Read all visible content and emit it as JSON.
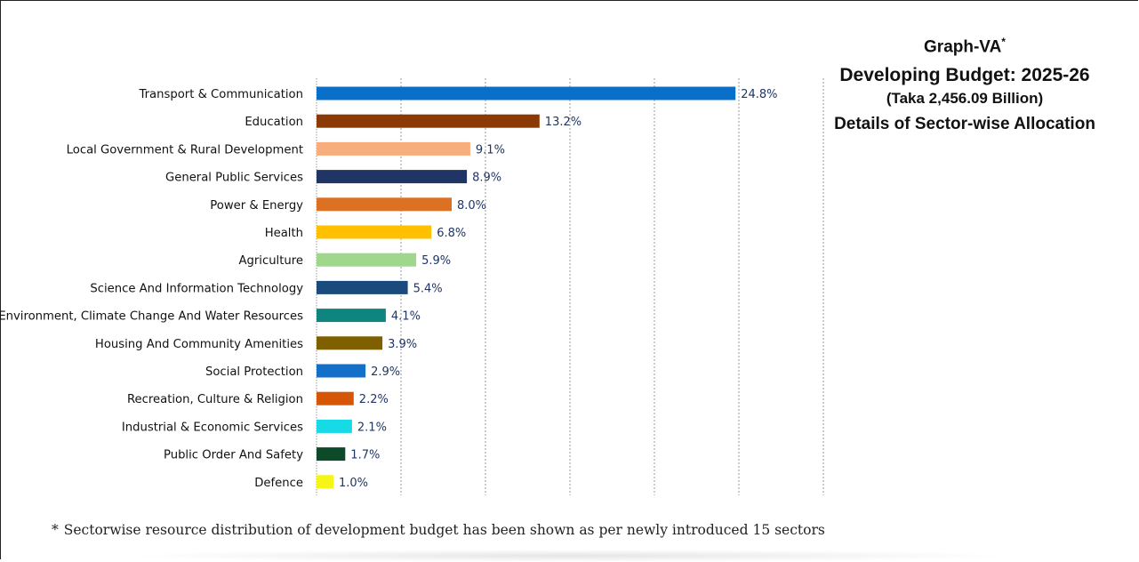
{
  "header": {
    "graph_label": "Graph-VA",
    "graph_mark": "*",
    "title": "Developing Budget: 2025-26",
    "subtitle": "(Taka 2,456.09 Billion)",
    "description": "Details of Sector-wise Allocation"
  },
  "footnote": {
    "mark": "*",
    "text": "Sectorwise resource distribution of development budget has been shown as per newly introduced 15 sectors"
  },
  "chart_data": {
    "type": "bar",
    "orientation": "horizontal",
    "grid": true,
    "value_suffix": "%",
    "xlim": [
      0,
      30
    ],
    "categories": [
      "Transport & Communication",
      "Education",
      "Local Government & Rural Development",
      "General Public Services",
      "Power & Energy",
      "Health",
      "Agriculture",
      "Science And Information Technology",
      "Environment, Climate Change And Water Resources",
      "Housing And Community Amenities",
      "Social Protection",
      "Recreation, Culture &  Religion",
      "Industrial & Economic Services",
      "Public Order And Safety",
      "Defence"
    ],
    "values": [
      24.8,
      13.2,
      9.1,
      8.9,
      8.0,
      6.8,
      5.9,
      5.4,
      4.1,
      3.9,
      2.9,
      2.2,
      2.1,
      1.7,
      1.0
    ],
    "labels": [
      "24.8%",
      "13.2%",
      "9.1%",
      "8.9%",
      "8.0%",
      "6.8%",
      "5.9%",
      "5.4%",
      "4.1%",
      "3.9%",
      "2.9%",
      "2.2%",
      "2.1%",
      "1.7%",
      "1.0%"
    ],
    "colors": [
      "#0a6fc9",
      "#8b3a06",
      "#f8ad7c",
      "#1f3566",
      "#dc7124",
      "#ffc000",
      "#9fd78c",
      "#1b4a7c",
      "#0f8580",
      "#7f6000",
      "#136fc7",
      "#d65607",
      "#16dae5",
      "#0d4a2a",
      "#f5f518"
    ],
    "label_color": "#1f3566",
    "grid_color": "#9a9a9a"
  }
}
